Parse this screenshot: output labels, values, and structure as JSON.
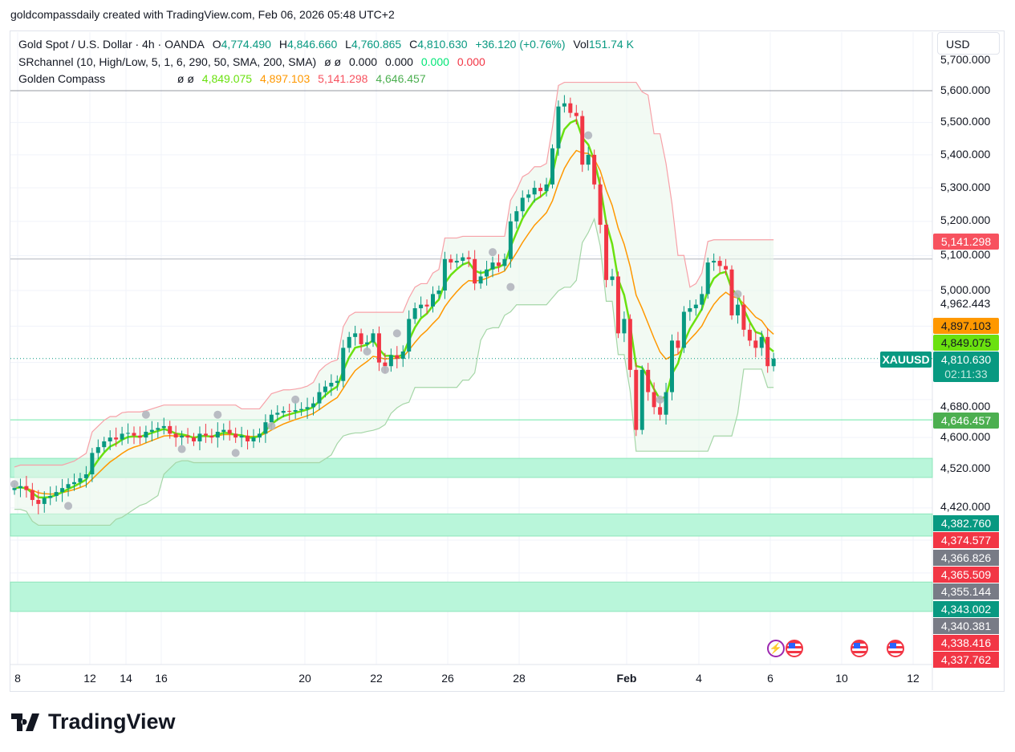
{
  "credit": "goldcompassdaily created with TradingView.com, Feb 06, 2026 05:48 UTC+2",
  "legend": {
    "symbol": "Gold Spot / U.S. Dollar · 4h · OANDA",
    "o_label": "O",
    "o": "4,774.490",
    "h_label": "H",
    "h": "4,846.660",
    "l_label": "L",
    "l": "4,760.865",
    "c_label": "C",
    "c": "4,810.630",
    "change": "+36.120 (+0.76%)",
    "vol_label": "Vol",
    "vol": "151.74 K",
    "srchannel": "SRchannel (10, High/Low, 5, 1, 6, 290, 50, SMA, 200, SMA)",
    "sr_icons": "ø  ø",
    "sr_values": [
      "0.000",
      "0.000",
      "0.000",
      "0.000"
    ],
    "golden": "Golden Compass",
    "gc_icons": "ø  ø",
    "gc_values": [
      "4,849.075",
      "4,897.103",
      "5,141.298",
      "4,646.457"
    ]
  },
  "currency": "USD",
  "colors": {
    "up": "#089981",
    "down": "#f23645",
    "fast": "#6ae10f",
    "slow": "#ff9800",
    "upper": "#f7525f",
    "lower": "#4caf50",
    "zone": "#b9f6da"
  },
  "chart_data": {
    "type": "candlestick",
    "symbol_tag": "XAUUSD",
    "timeframe": "4h",
    "y_scale": "log",
    "ylim": [
      4290,
      5790
    ],
    "y_ticks": [
      "5,700.000",
      "5,600.000",
      "5,500.000",
      "5,400.000",
      "5,300.000",
      "5,200.000",
      "5,100.000",
      "5,000.000",
      "4,962.443",
      "4,680.000",
      "4,600.000",
      "4,520.000",
      "4,420.000"
    ],
    "x_ticks": [
      "8",
      "12",
      "14",
      "16",
      "20",
      "22",
      "26",
      "28",
      "Feb",
      "4",
      "6",
      "10",
      "12"
    ],
    "close": [
      4470,
      4475,
      4465,
      4440,
      4430,
      4445,
      4450,
      4460,
      4470,
      4480,
      4485,
      4495,
      4505,
      4560,
      4575,
      4590,
      4600,
      4595,
      4610,
      4612,
      4605,
      4600,
      4615,
      4620,
      4625,
      4630,
      4610,
      4600,
      4605,
      4600,
      4590,
      4610,
      4605,
      4600,
      4615,
      4620,
      4610,
      4600,
      4605,
      4590,
      4600,
      4610,
      4640,
      4660,
      4665,
      4670,
      4668,
      4672,
      4675,
      4680,
      4690,
      4720,
      4735,
      4745,
      4750,
      4840,
      4870,
      4880,
      4850,
      4855,
      4880,
      4800,
      4790,
      4820,
      4810,
      4830,
      4920,
      4950,
      4960,
      4955,
      4990,
      5000,
      5090,
      5080,
      5085,
      5095,
      5090,
      5020,
      5040,
      5060,
      5080,
      5070,
      5090,
      5200,
      5230,
      5270,
      5280,
      5300,
      5290,
      5310,
      5420,
      5550,
      5560,
      5530,
      5520,
      5370,
      5400,
      5310,
      5190,
      5030,
      5040,
      4880,
      4920,
      4780,
      4620,
      4780,
      4720,
      4680,
      4660,
      4720,
      4860,
      4840,
      4940,
      4950,
      4960,
      4990,
      5080,
      5085,
      5070,
      5060,
      4930,
      4960,
      4890,
      4860,
      4840,
      4870,
      4790,
      4810.63
    ],
    "horizontal_lines": [
      5600,
      5090,
      4646.457
    ],
    "zones": [
      [
        4497,
        4546
      ],
      [
        4350,
        4405
      ],
      [
        4168,
        4238
      ]
    ],
    "current_price": "4,810.630",
    "countdown": "02:11:33",
    "indicator_labels": [
      {
        "value": "5,141.298",
        "color": "#f7525f"
      },
      {
        "value": "4,897.103",
        "color": "#ff9800"
      },
      {
        "value": "4,849.075",
        "color": "#6ae10f"
      },
      {
        "value": "4,646.457",
        "color": "#4caf50"
      }
    ],
    "sr_labels": [
      {
        "value": "4,382.760",
        "color": "#089981"
      },
      {
        "value": "4,374.577",
        "color": "#f23645"
      },
      {
        "value": "4,366.826",
        "color": "#787b86"
      },
      {
        "value": "4,365.509",
        "color": "#f23645"
      },
      {
        "value": "4,355.144",
        "color": "#787b86"
      },
      {
        "value": "4,343.002",
        "color": "#089981"
      },
      {
        "value": "4,340.381",
        "color": "#787b86"
      },
      {
        "value": "4,338.416",
        "color": "#f23645"
      },
      {
        "value": "4,337.762",
        "color": "#f23645"
      }
    ],
    "markers": [
      [
        0,
        4480
      ],
      [
        9,
        4425
      ],
      [
        22,
        4660
      ],
      [
        28,
        4570
      ],
      [
        34,
        4660
      ],
      [
        37,
        4560
      ],
      [
        43,
        4630
      ],
      [
        47,
        4700
      ],
      [
        59,
        4830
      ],
      [
        62,
        4780
      ],
      [
        64,
        4880
      ],
      [
        80,
        5110
      ],
      [
        83,
        5010
      ],
      [
        96,
        5460
      ],
      [
        108,
        4700
      ],
      [
        121,
        4990
      ]
    ]
  },
  "events": [
    "lightning-icon",
    "us-flag-icon",
    "us-flag-icon",
    "us-flag-icon"
  ],
  "brand": "TradingView"
}
